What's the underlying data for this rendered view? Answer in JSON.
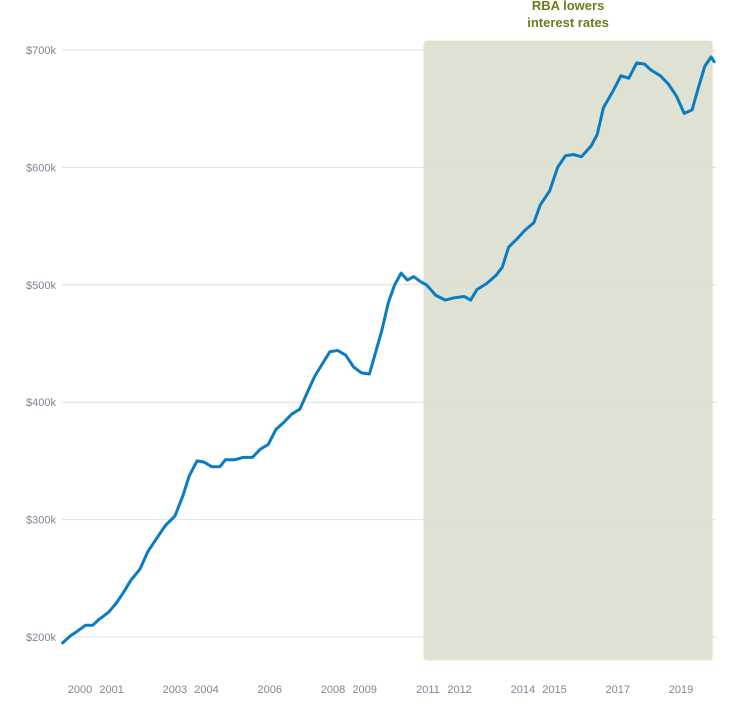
{
  "chart_data": {
    "type": "line",
    "title": "",
    "xlabel": "",
    "ylabel": "",
    "y_tick_labels": [
      "$200k",
      "$300k",
      "$400k",
      "$500k",
      "$600k",
      "$700k"
    ],
    "y_tick_values": [
      200,
      300,
      400,
      500,
      600,
      700
    ],
    "x_tick_labels": [
      "2000",
      "2001",
      "2003",
      "2004",
      "2006",
      "2008",
      "2009",
      "2011",
      "2012",
      "2014",
      "2015",
      "2017",
      "2019"
    ],
    "x_tick_values": [
      2000.0,
      2001.0,
      2003.0,
      2004.0,
      2006.0,
      2008.0,
      2009.0,
      2011.0,
      2012.0,
      2014.0,
      2015.0,
      2017.0,
      2019.0
    ],
    "xlim": [
      1999.3,
      2020.2
    ],
    "ylim": [
      185,
      720
    ],
    "grid": true,
    "shaded_region": {
      "x_start": 2010.86,
      "x_end": 2020.0,
      "y_min": 180,
      "y_max": 708,
      "color": "#dfe1d3",
      "label_lines": [
        "RBA lowers",
        "interest rates"
      ]
    },
    "series_color": "#0a7cc2",
    "x": [
      1999.45,
      1999.7,
      1999.92,
      2000.17,
      2000.4,
      2000.6,
      2000.9,
      2001.15,
      2001.4,
      2001.6,
      2001.9,
      2002.15,
      2002.45,
      2002.7,
      2003.0,
      2003.25,
      2003.45,
      2003.7,
      2003.92,
      2004.17,
      2004.42,
      2004.6,
      2004.9,
      2005.15,
      2005.45,
      2005.7,
      2005.95,
      2006.2,
      2006.45,
      2006.7,
      2006.95,
      2007.2,
      2007.42,
      2007.6,
      2007.9,
      2008.15,
      2008.4,
      2008.65,
      2008.9,
      2009.15,
      2009.35,
      2009.55,
      2009.75,
      2009.95,
      2010.15,
      2010.35,
      2010.55,
      2010.75,
      2010.95,
      2011.25,
      2011.55,
      2011.85,
      2012.15,
      2012.35,
      2012.55,
      2012.85,
      2013.15,
      2013.35,
      2013.55,
      2013.85,
      2014.05,
      2014.35,
      2014.55,
      2014.85,
      2015.1,
      2015.35,
      2015.6,
      2015.85,
      2016.15,
      2016.35,
      2016.55,
      2016.85,
      2017.1,
      2017.35,
      2017.6,
      2017.85,
      2018.05,
      2018.35,
      2018.6,
      2018.85,
      2019.1,
      2019.35,
      2019.55,
      2019.75,
      2019.95,
      2020.05
    ],
    "y": [
      195,
      201,
      205,
      210,
      210,
      215,
      221,
      229,
      239,
      248,
      258,
      273,
      285,
      295,
      303,
      320,
      337,
      350,
      349,
      345,
      345,
      351,
      351,
      353,
      353,
      360,
      364,
      377,
      383,
      390,
      394,
      409,
      422,
      430,
      443,
      444,
      440,
      430,
      425,
      424,
      443,
      462,
      485,
      500,
      510,
      504,
      507,
      503,
      500,
      491,
      487,
      489,
      490,
      487,
      496,
      501,
      508,
      515,
      532,
      540,
      546,
      553,
      568,
      580,
      600,
      610,
      611,
      609,
      618,
      628,
      651,
      665,
      678,
      676,
      689,
      688,
      683,
      678,
      671,
      661,
      646,
      649,
      668,
      686,
      694,
      690
    ]
  }
}
